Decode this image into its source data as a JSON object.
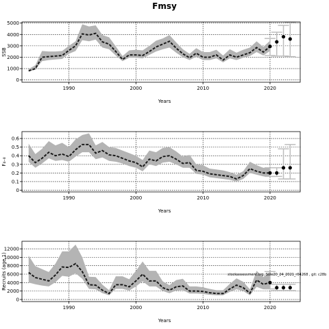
{
  "title": "Fmsy",
  "chart_data": [
    {
      "type": "line",
      "ylabel": "SSB",
      "xlabel": "Years",
      "xlim": [
        1983,
        2024.5
      ],
      "ylim": [
        -200,
        5100
      ],
      "xticks": [
        1990,
        2000,
        2010,
        2020
      ],
      "yticks": [
        0,
        1000,
        2000,
        3000,
        4000,
        5000
      ],
      "grid": "dotted",
      "series": [
        {
          "role": "historical",
          "x": [
            1984,
            1985,
            1986,
            1987,
            1988,
            1989,
            1990,
            1991,
            1992,
            1993,
            1994,
            1995,
            1996,
            1997,
            1998,
            1999,
            2000,
            2001,
            2002,
            2003,
            2004,
            2005,
            2006,
            2007,
            2008,
            2009,
            2010,
            2011,
            2012,
            2013,
            2014,
            2015,
            2016,
            2017,
            2018,
            2019,
            2020
          ],
          "values": [
            800,
            1000,
            2000,
            2050,
            2100,
            2150,
            2600,
            3000,
            4050,
            3950,
            4100,
            3350,
            3150,
            2500,
            1800,
            2200,
            2200,
            2150,
            2500,
            2900,
            3150,
            3400,
            2800,
            2300,
            1950,
            2350,
            2000,
            2000,
            2200,
            1750,
            2200,
            2000,
            2200,
            2400,
            2850,
            2450,
            2950
          ],
          "lower": [
            750,
            900,
            1650,
            1750,
            1800,
            1850,
            2300,
            2550,
            3500,
            3400,
            3550,
            2850,
            2700,
            2150,
            1650,
            1950,
            1950,
            1900,
            2200,
            2500,
            2700,
            2850,
            2400,
            2000,
            1750,
            2050,
            1750,
            1750,
            1900,
            1550,
            1900,
            1750,
            1950,
            2100,
            2450,
            2150,
            2550
          ],
          "upper": [
            950,
            1300,
            2550,
            2500,
            2500,
            2550,
            3000,
            3400,
            4900,
            4700,
            4800,
            3950,
            3750,
            2950,
            2100,
            2600,
            2650,
            2600,
            3000,
            3450,
            3650,
            3950,
            3300,
            2700,
            2300,
            2800,
            2450,
            2450,
            2650,
            2150,
            2700,
            2400,
            2650,
            2850,
            3400,
            2900,
            3450
          ]
        },
        {
          "role": "projection",
          "x": [
            2020,
            2021,
            2022,
            2023
          ],
          "values": [
            2950,
            3350,
            3800,
            3600
          ],
          "lower": [
            2150,
            2100,
            2100,
            2050
          ],
          "upper": [
            3650,
            4200,
            4800,
            5050
          ]
        }
      ]
    },
    {
      "type": "line",
      "ylabel": "F₄₋₈",
      "xlabel": "Years",
      "xlim": [
        1983,
        2024.5
      ],
      "ylim": [
        -0.02,
        0.68
      ],
      "xticks": [
        1990,
        2000,
        2010,
        2020
      ],
      "yticks": [
        0,
        0.1,
        0.2,
        0.3,
        0.4,
        0.5,
        0.6
      ],
      "grid": "dotted",
      "series": [
        {
          "role": "historical",
          "x": [
            1984,
            1985,
            1986,
            1987,
            1988,
            1989,
            1990,
            1991,
            1992,
            1993,
            1994,
            1995,
            1996,
            1997,
            1998,
            1999,
            2000,
            2001,
            2002,
            2003,
            2004,
            2005,
            2006,
            2007,
            2008,
            2009,
            2010,
            2011,
            2012,
            2013,
            2014,
            2015,
            2016,
            2017,
            2018,
            2019,
            2020
          ],
          "values": [
            0.4,
            0.32,
            0.37,
            0.44,
            0.4,
            0.42,
            0.39,
            0.47,
            0.53,
            0.53,
            0.43,
            0.46,
            0.41,
            0.4,
            0.37,
            0.34,
            0.32,
            0.27,
            0.36,
            0.34,
            0.39,
            0.4,
            0.36,
            0.31,
            0.32,
            0.23,
            0.22,
            0.19,
            0.18,
            0.17,
            0.16,
            0.13,
            0.17,
            0.25,
            0.22,
            0.2,
            0.2
          ],
          "lower": [
            0.33,
            0.26,
            0.31,
            0.37,
            0.34,
            0.35,
            0.33,
            0.39,
            0.44,
            0.44,
            0.36,
            0.38,
            0.34,
            0.33,
            0.31,
            0.28,
            0.26,
            0.22,
            0.3,
            0.28,
            0.32,
            0.33,
            0.3,
            0.26,
            0.26,
            0.19,
            0.18,
            0.15,
            0.14,
            0.13,
            0.12,
            0.1,
            0.13,
            0.2,
            0.18,
            0.16,
            0.16
          ],
          "upper": [
            0.54,
            0.42,
            0.48,
            0.57,
            0.52,
            0.55,
            0.5,
            0.59,
            0.64,
            0.66,
            0.52,
            0.56,
            0.5,
            0.49,
            0.46,
            0.43,
            0.4,
            0.35,
            0.46,
            0.44,
            0.49,
            0.5,
            0.45,
            0.39,
            0.41,
            0.3,
            0.29,
            0.25,
            0.24,
            0.23,
            0.21,
            0.18,
            0.22,
            0.33,
            0.29,
            0.26,
            0.26
          ]
        },
        {
          "role": "projection",
          "x": [
            2020,
            2021,
            2022,
            2023
          ],
          "values": [
            0.2,
            0.2,
            0.26,
            0.26
          ],
          "lower": [
            0.16,
            0.16,
            0.13,
            0.13
          ],
          "upper": [
            0.26,
            0.26,
            0.48,
            0.53
          ]
        }
      ]
    },
    {
      "type": "line",
      "ylabel": "Recruits (age 1)",
      "xlabel": "Years",
      "xlim": [
        1983,
        2024.5
      ],
      "ylim": [
        -500,
        13800
      ],
      "xticks": [
        1990,
        2000,
        2010,
        2020
      ],
      "yticks": [
        0,
        2000,
        4000,
        6000,
        8000,
        10000,
        12000
      ],
      "grid": "dotted",
      "annotation": "stockassessment.org, Sole20_24_2021_r04268 , git: c28b",
      "series": [
        {
          "role": "historical",
          "x": [
            1984,
            1985,
            1986,
            1987,
            1988,
            1989,
            1990,
            1991,
            1992,
            1993,
            1994,
            1995,
            1996,
            1997,
            1998,
            1999,
            2000,
            2001,
            2002,
            2003,
            2004,
            2005,
            2006,
            2007,
            2008,
            2009,
            2010,
            2011,
            2012,
            2013,
            2014,
            2015,
            2016,
            2017,
            2018,
            2019,
            2020
          ],
          "values": [
            6400,
            5200,
            4800,
            4400,
            5800,
            7700,
            7600,
            8500,
            6600,
            3500,
            3400,
            2200,
            1400,
            3500,
            3500,
            3000,
            4400,
            6000,
            4400,
            4400,
            2800,
            2200,
            3000,
            3200,
            2000,
            2000,
            1900,
            1600,
            1400,
            1400,
            2500,
            3400,
            2800,
            1500,
            4600,
            3600,
            4000
          ],
          "lower": [
            4000,
            3600,
            3300,
            3100,
            4100,
            5600,
            5400,
            6200,
            4900,
            2500,
            2400,
            1500,
            1000,
            2500,
            2500,
            2100,
            3100,
            4300,
            3100,
            3100,
            2000,
            1500,
            2100,
            2200,
            1400,
            1400,
            1300,
            1100,
            1000,
            1000,
            1800,
            2400,
            2000,
            1000,
            3000,
            2400,
            2500
          ],
          "upper": [
            10400,
            7900,
            7200,
            6500,
            8500,
            11400,
            11400,
            13000,
            10000,
            5400,
            5300,
            3500,
            2200,
            5500,
            5500,
            4800,
            6800,
            9000,
            6800,
            6800,
            4300,
            3400,
            4600,
            4900,
            3100,
            3100,
            2900,
            2500,
            2200,
            2200,
            3700,
            5000,
            4200,
            2400,
            6800,
            5300,
            6600
          ]
        },
        {
          "role": "projection",
          "x": [
            2020,
            2021,
            2022,
            2023
          ],
          "values": [
            4000,
            2800,
            2800,
            2800
          ],
          "lower": [
            2500,
            2100,
            2100,
            2100
          ],
          "upper": [
            6600,
            3600,
            3600,
            3600
          ]
        }
      ]
    }
  ]
}
